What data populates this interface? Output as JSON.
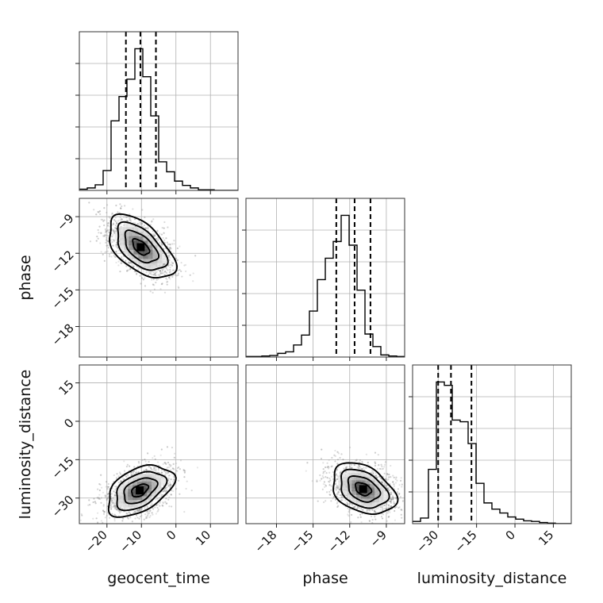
{
  "chart_data": {
    "type": "corner",
    "parameters": [
      "geocent_time",
      "phase",
      "luminosity_distance"
    ],
    "ranges": {
      "geocent_time": [
        -28,
        18
      ],
      "phase": [
        -20.5,
        -7.5
      ],
      "luminosity_distance": [
        -40,
        22
      ]
    },
    "ticks": {
      "geocent_time": [
        -20,
        -10,
        0,
        10
      ],
      "phase": [
        -18,
        -15,
        -12,
        -9
      ],
      "luminosity_distance": [
        -30,
        -15,
        0,
        15
      ]
    },
    "tick_labels": {
      "geocent_time": [
        "−20",
        "−10",
        "0",
        "10"
      ],
      "phase": [
        "−18",
        "−15",
        "−12",
        "−9"
      ],
      "luminosity_distance": [
        "−30",
        "−15",
        "0",
        "15"
      ]
    },
    "quantiles": {
      "geocent_time": [
        -14.5,
        -10.3,
        -5.8
      ],
      "phase": [
        -13.1,
        -11.6,
        -10.3
      ],
      "luminosity_distance": [
        -30.0,
        -25.0,
        -17.0
      ]
    },
    "histograms": {
      "geocent_time": {
        "bin_edges": [
          -28,
          -25.7,
          -23.4,
          -21.1,
          -18.8,
          -16.5,
          -14.2,
          -11.9,
          -9.6,
          -7.3,
          -5,
          -2.7,
          -0.4,
          1.9,
          4.2,
          6.5,
          8.8,
          11.1,
          13.4,
          15.7,
          18
        ],
        "counts": [
          2,
          4,
          9,
          32,
          112,
          151,
          179,
          228,
          183,
          120,
          46,
          30,
          15,
          8,
          4,
          1,
          1,
          0,
          0,
          0
        ]
      },
      "phase": {
        "bin_edges": [
          -20.5,
          -19.85,
          -19.2,
          -18.55,
          -17.9,
          -17.25,
          -16.6,
          -15.95,
          -15.3,
          -14.65,
          -14,
          -13.35,
          -12.7,
          -12.05,
          -11.4,
          -10.75,
          -10.1,
          -9.45,
          -8.8,
          -8.15,
          -7.5
        ],
        "counts": [
          1,
          1,
          2,
          3,
          7,
          10,
          23,
          42,
          88,
          148,
          189,
          221,
          271,
          214,
          128,
          44,
          20,
          4,
          2,
          1
        ]
      },
      "luminosity_distance": {
        "bin_edges": [
          -40,
          -36.9,
          -33.8,
          -30.7,
          -27.6,
          -24.5,
          -21.4,
          -18.3,
          -15.2,
          -12.1,
          -9,
          -5.9,
          -2.8,
          0.3,
          3.4,
          6.5,
          9.6,
          12.7,
          15.8,
          18.9,
          22
        ],
        "counts": [
          4,
          10,
          97,
          253,
          247,
          185,
          182,
          143,
          72,
          37,
          26,
          19,
          12,
          8,
          5,
          4,
          2,
          1,
          0,
          0
        ]
      }
    },
    "pairs": [
      {
        "x": "geocent_time",
        "y": "phase",
        "center": [
          -10.2,
          -11.5
        ],
        "sd": [
          4.8,
          1.3
        ],
        "corr": -0.55,
        "contour_levels_sigma": [
          0.5,
          1.0,
          1.5,
          2.0
        ]
      },
      {
        "x": "geocent_time",
        "y": "luminosity_distance",
        "center": [
          -10.5,
          -27.0
        ],
        "sd": [
          4.8,
          5.0
        ],
        "corr": 0.45,
        "contour_levels_sigma": [
          0.5,
          1.0,
          1.5,
          2.0
        ]
      },
      {
        "x": "phase",
        "y": "luminosity_distance",
        "center": [
          -10.9,
          -26.5
        ],
        "sd": [
          1.3,
          5.0
        ],
        "corr": -0.35,
        "contour_levels_sigma": [
          0.5,
          1.0,
          1.5,
          2.0
        ]
      }
    ],
    "grid": true
  }
}
